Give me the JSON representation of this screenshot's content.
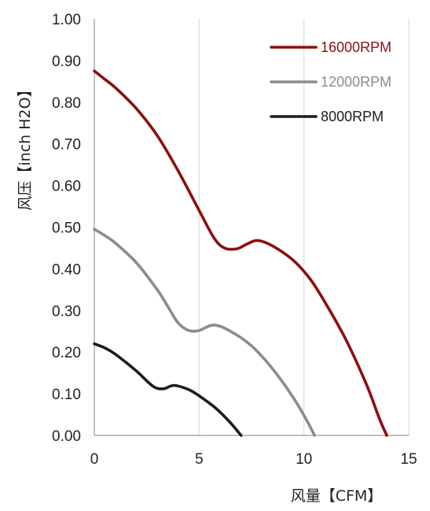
{
  "chart_data": {
    "type": "line",
    "xlabel": "风量【CFM】",
    "ylabel": "风压【inch H2O】",
    "xlim": [
      0,
      15
    ],
    "ylim": [
      0,
      1.0
    ],
    "x_ticks": [
      "0",
      "5",
      "10",
      "15"
    ],
    "y_ticks": [
      "0.00",
      "0.10",
      "0.20",
      "0.30",
      "0.40",
      "0.50",
      "0.60",
      "0.70",
      "0.80",
      "0.90",
      "1.00"
    ],
    "grid": "vertical",
    "legend_position": "top-right",
    "series": [
      {
        "name": "16000RPM",
        "color": "#8b0f0f",
        "points": [
          [
            0,
            0.875
          ],
          [
            0.5,
            0.855
          ],
          [
            1,
            0.835
          ],
          [
            2,
            0.785
          ],
          [
            3,
            0.72
          ],
          [
            4,
            0.635
          ],
          [
            5,
            0.54
          ],
          [
            5.7,
            0.475
          ],
          [
            6.2,
            0.45
          ],
          [
            6.8,
            0.448
          ],
          [
            7.3,
            0.46
          ],
          [
            7.8,
            0.468
          ],
          [
            8.5,
            0.455
          ],
          [
            9.5,
            0.42
          ],
          [
            10.3,
            0.375
          ],
          [
            11,
            0.32
          ],
          [
            12,
            0.23
          ],
          [
            13,
            0.12
          ],
          [
            13.6,
            0.04
          ],
          [
            13.95,
            0.0
          ]
        ]
      },
      {
        "name": "12000RPM",
        "color": "#8c8c8c",
        "points": [
          [
            0,
            0.495
          ],
          [
            0.5,
            0.48
          ],
          [
            1,
            0.462
          ],
          [
            2,
            0.415
          ],
          [
            3,
            0.35
          ],
          [
            3.5,
            0.31
          ],
          [
            4,
            0.27
          ],
          [
            4.5,
            0.252
          ],
          [
            5,
            0.252
          ],
          [
            5.7,
            0.265
          ],
          [
            6.5,
            0.25
          ],
          [
            7.5,
            0.215
          ],
          [
            8.5,
            0.16
          ],
          [
            9.5,
            0.09
          ],
          [
            10.2,
            0.03
          ],
          [
            10.5,
            0.0
          ]
        ]
      },
      {
        "name": "8000RPM",
        "color": "#1c1c1c",
        "points": [
          [
            0,
            0.22
          ],
          [
            0.5,
            0.21
          ],
          [
            1,
            0.195
          ],
          [
            2,
            0.155
          ],
          [
            2.8,
            0.118
          ],
          [
            3.3,
            0.112
          ],
          [
            3.8,
            0.12
          ],
          [
            4.5,
            0.11
          ],
          [
            5,
            0.095
          ],
          [
            5.8,
            0.065
          ],
          [
            6.5,
            0.03
          ],
          [
            7,
            0.0
          ]
        ]
      }
    ]
  }
}
